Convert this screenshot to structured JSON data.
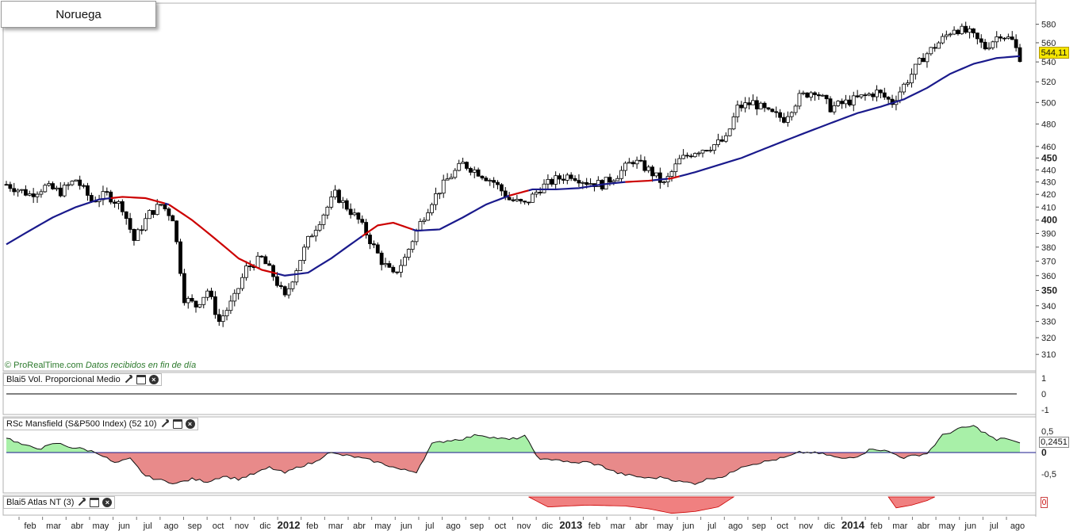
{
  "title": "Noruega",
  "credit": {
    "brand": "© ProRealTime.com",
    "note": "Datos recibidos en fin de día"
  },
  "last_price_label": "544,11",
  "panes": {
    "volume": {
      "label": "Blai5 Vol. Proporcional Medio",
      "ticks": [
        "1",
        "0",
        "-1"
      ]
    },
    "rsc": {
      "label": "RSc Mansfield (S&P500 Index) (52 10)",
      "ticks": [
        "0,5",
        "0",
        "-0,5"
      ],
      "last_value": "0,2451"
    },
    "atlas": {
      "label": "Blai5 Atlas NT (3)",
      "last_value": "0"
    }
  },
  "colors": {
    "moving_average_up": "#1a1a8c",
    "moving_average_down": "#cc0000",
    "rsc_positive_fill": "#a8f0a8",
    "rsc_negative_fill": "#e88a8a",
    "atlas_fill": "#f08080",
    "candle_up": "#ffffff",
    "candle_down": "#000000",
    "price_tag": "#f5e600"
  },
  "chart_data": [
    {
      "type": "candlestick",
      "title": "Noruega",
      "xlabel": "",
      "ylabel": "",
      "y_scale": "log",
      "ylim": [
        305,
        592
      ],
      "y_ticks": [
        {
          "value": 580,
          "label": "580"
        },
        {
          "value": 560,
          "label": "560"
        },
        {
          "value": 540,
          "label": "540"
        },
        {
          "value": 520,
          "label": "520"
        },
        {
          "value": 500,
          "label": "500"
        },
        {
          "value": 480,
          "label": "480"
        },
        {
          "value": 460,
          "label": "460"
        },
        {
          "value": 450,
          "label": "450",
          "bold": true
        },
        {
          "value": 440,
          "label": "440"
        },
        {
          "value": 430,
          "label": "430"
        },
        {
          "value": 420,
          "label": "420"
        },
        {
          "value": 410,
          "label": "410"
        },
        {
          "value": 400,
          "label": "400",
          "bold": true
        },
        {
          "value": 390,
          "label": "390"
        },
        {
          "value": 380,
          "label": "380"
        },
        {
          "value": 370,
          "label": "370"
        },
        {
          "value": 360,
          "label": "360"
        },
        {
          "value": 350,
          "label": "350",
          "bold": true
        },
        {
          "value": 340,
          "label": "340"
        },
        {
          "value": 330,
          "label": "330"
        },
        {
          "value": 320,
          "label": "320"
        },
        {
          "value": 310,
          "label": "310"
        }
      ],
      "x_labels": [
        {
          "label": "feb"
        },
        {
          "label": "mar"
        },
        {
          "label": "abr"
        },
        {
          "label": "may"
        },
        {
          "label": "jun"
        },
        {
          "label": "jul"
        },
        {
          "label": "ago"
        },
        {
          "label": "sep"
        },
        {
          "label": "oct"
        },
        {
          "label": "nov"
        },
        {
          "label": "dic"
        },
        {
          "label": "2012",
          "bold": true
        },
        {
          "label": "feb"
        },
        {
          "label": "mar"
        },
        {
          "label": "abr"
        },
        {
          "label": "may"
        },
        {
          "label": "jun"
        },
        {
          "label": "jul"
        },
        {
          "label": "ago"
        },
        {
          "label": "sep"
        },
        {
          "label": "oct"
        },
        {
          "label": "nov"
        },
        {
          "label": "dic"
        },
        {
          "label": "2013",
          "bold": true
        },
        {
          "label": "feb"
        },
        {
          "label": "mar"
        },
        {
          "label": "abr"
        },
        {
          "label": "may"
        },
        {
          "label": "jun"
        },
        {
          "label": "jul"
        },
        {
          "label": "ago"
        },
        {
          "label": "sep"
        },
        {
          "label": "oct"
        },
        {
          "label": "nov"
        },
        {
          "label": "dic"
        },
        {
          "label": "2014",
          "bold": true
        },
        {
          "label": "feb"
        },
        {
          "label": "mar"
        },
        {
          "label": "abr"
        },
        {
          "label": "may"
        },
        {
          "label": "jun"
        },
        {
          "label": "jul"
        },
        {
          "label": "ago"
        }
      ],
      "close_path": [
        [
          0,
          428
        ],
        [
          6,
          420
        ],
        [
          10,
          426
        ],
        [
          14,
          422
        ],
        [
          18,
          432
        ],
        [
          22,
          415
        ],
        [
          26,
          420
        ],
        [
          30,
          410
        ],
        [
          33,
          385
        ],
        [
          37,
          405
        ],
        [
          40,
          412
        ],
        [
          43,
          402
        ],
        [
          46,
          345
        ],
        [
          49,
          340
        ],
        [
          52,
          350
        ],
        [
          55,
          330
        ],
        [
          59,
          345
        ],
        [
          62,
          365
        ],
        [
          66,
          372
        ],
        [
          69,
          360
        ],
        [
          72,
          345
        ],
        [
          75,
          365
        ],
        [
          78,
          385
        ],
        [
          82,
          405
        ],
        [
          85,
          420
        ],
        [
          88,
          410
        ],
        [
          91,
          400
        ],
        [
          94,
          385
        ],
        [
          97,
          370
        ],
        [
          100,
          360
        ],
        [
          103,
          372
        ],
        [
          106,
          392
        ],
        [
          110,
          415
        ],
        [
          114,
          432
        ],
        [
          118,
          445
        ],
        [
          122,
          438
        ],
        [
          126,
          430
        ],
        [
          130,
          416
        ],
        [
          134,
          412
        ],
        [
          138,
          425
        ],
        [
          142,
          432
        ],
        [
          146,
          436
        ],
        [
          150,
          430
        ],
        [
          154,
          428
        ],
        [
          158,
          436
        ],
        [
          162,
          448
        ],
        [
          166,
          440
        ],
        [
          170,
          428
        ],
        [
          174,
          448
        ],
        [
          178,
          456
        ],
        [
          182,
          460
        ],
        [
          186,
          466
        ],
        [
          189,
          495
        ],
        [
          193,
          500
        ],
        [
          197,
          490
        ],
        [
          201,
          485
        ],
        [
          205,
          505
        ],
        [
          209,
          512
        ],
        [
          213,
          495
        ],
        [
          217,
          500
        ],
        [
          221,
          505
        ],
        [
          225,
          510
        ],
        [
          229,
          500
        ],
        [
          233,
          522
        ],
        [
          237,
          545
        ],
        [
          241,
          560
        ],
        [
          245,
          576
        ],
        [
          249,
          570
        ],
        [
          253,
          555
        ],
        [
          257,
          570
        ],
        [
          260,
          562
        ],
        [
          262,
          545
        ]
      ],
      "moving_average": [
        [
          0,
          382
        ],
        [
          6,
          392
        ],
        [
          12,
          402
        ],
        [
          18,
          410
        ],
        [
          24,
          416
        ],
        [
          30,
          418
        ],
        [
          36,
          417
        ],
        [
          42,
          412
        ],
        [
          48,
          400
        ],
        [
          54,
          386
        ],
        [
          60,
          372
        ],
        [
          66,
          364
        ],
        [
          72,
          360
        ],
        [
          78,
          362
        ],
        [
          84,
          372
        ],
        [
          90,
          384
        ],
        [
          96,
          396
        ],
        [
          100,
          398
        ],
        [
          106,
          392
        ],
        [
          112,
          393
        ],
        [
          118,
          402
        ],
        [
          124,
          412
        ],
        [
          130,
          419
        ],
        [
          136,
          424
        ],
        [
          142,
          424
        ],
        [
          148,
          425
        ],
        [
          154,
          428
        ],
        [
          160,
          430
        ],
        [
          166,
          431
        ],
        [
          172,
          433
        ],
        [
          178,
          438
        ],
        [
          184,
          444
        ],
        [
          190,
          450
        ],
        [
          196,
          458
        ],
        [
          202,
          466
        ],
        [
          208,
          474
        ],
        [
          214,
          482
        ],
        [
          220,
          490
        ],
        [
          226,
          496
        ],
        [
          232,
          503
        ],
        [
          238,
          514
        ],
        [
          244,
          528
        ],
        [
          250,
          538
        ],
        [
          256,
          544
        ],
        [
          262,
          546
        ]
      ],
      "ma_down_segments": [
        [
          27,
          40
        ],
        [
          42,
          69
        ],
        [
          92,
          104
        ],
        [
          130,
          134
        ],
        [
          160,
          166
        ],
        [
          171,
          173
        ]
      ]
    },
    {
      "type": "line",
      "title": "Blai5 Vol. Proporcional Medio",
      "ylim": [
        -1,
        1
      ],
      "values": [
        0
      ]
    },
    {
      "type": "area",
      "title": "RSc Mansfield (S&P500 Index) (52 10)",
      "ylim": [
        -0.9,
        0.8
      ],
      "baseline": 0,
      "series": [
        [
          0,
          0.35
        ],
        [
          5,
          0.15
        ],
        [
          9,
          0.1
        ],
        [
          13,
          0.22
        ],
        [
          17,
          0.12
        ],
        [
          20,
          0.08
        ],
        [
          24,
          -0.02
        ],
        [
          28,
          -0.25
        ],
        [
          32,
          -0.15
        ],
        [
          36,
          -0.55
        ],
        [
          40,
          -0.65
        ],
        [
          44,
          -0.72
        ],
        [
          48,
          -0.62
        ],
        [
          52,
          -0.68
        ],
        [
          56,
          -0.55
        ],
        [
          60,
          -0.62
        ],
        [
          64,
          -0.5
        ],
        [
          68,
          -0.35
        ],
        [
          72,
          -0.48
        ],
        [
          76,
          -0.32
        ],
        [
          80,
          -0.22
        ],
        [
          83,
          0.0
        ],
        [
          86,
          -0.05
        ],
        [
          90,
          -0.1
        ],
        [
          94,
          -0.18
        ],
        [
          98,
          -0.28
        ],
        [
          102,
          -0.4
        ],
        [
          106,
          -0.45
        ],
        [
          110,
          0.2
        ],
        [
          114,
          0.28
        ],
        [
          118,
          0.32
        ],
        [
          122,
          0.42
        ],
        [
          126,
          0.35
        ],
        [
          130,
          0.3
        ],
        [
          134,
          0.38
        ],
        [
          138,
          -0.18
        ],
        [
          142,
          -0.15
        ],
        [
          146,
          -0.25
        ],
        [
          150,
          -0.22
        ],
        [
          154,
          -0.32
        ],
        [
          158,
          -0.48
        ],
        [
          162,
          -0.55
        ],
        [
          166,
          -0.6
        ],
        [
          170,
          -0.58
        ],
        [
          174,
          -0.68
        ],
        [
          178,
          -0.72
        ],
        [
          182,
          -0.6
        ],
        [
          186,
          -0.55
        ],
        [
          190,
          -0.32
        ],
        [
          194,
          -0.25
        ],
        [
          198,
          -0.18
        ],
        [
          202,
          -0.1
        ],
        [
          205,
          0.0
        ],
        [
          208,
          0.0
        ],
        [
          212,
          -0.05
        ],
        [
          216,
          -0.15
        ],
        [
          220,
          -0.08
        ],
        [
          224,
          0.1
        ],
        [
          228,
          0.02
        ],
        [
          232,
          -0.12
        ],
        [
          236,
          -0.05
        ],
        [
          238,
          -0.02
        ],
        [
          242,
          0.4
        ],
        [
          246,
          0.55
        ],
        [
          250,
          0.62
        ],
        [
          254,
          0.4
        ],
        [
          256,
          0.28
        ],
        [
          258,
          0.35
        ],
        [
          262,
          0.2
        ]
      ]
    },
    {
      "type": "area",
      "title": "Blai5 Atlas NT (3)",
      "ylim": [
        -1,
        0
      ],
      "baseline": 0,
      "negative_segments": [
        {
          "from": 135,
          "to": 188,
          "path": [
            [
              135,
              0
            ],
            [
              140,
              -0.55
            ],
            [
              150,
              -0.45
            ],
            [
              160,
              -0.5
            ],
            [
              166,
              -0.65
            ],
            [
              172,
              -0.9
            ],
            [
              178,
              -0.8
            ],
            [
              184,
              -0.55
            ],
            [
              188,
              0
            ]
          ]
        },
        {
          "from": 228,
          "to": 240,
          "path": [
            [
              228,
              0
            ],
            [
              230,
              -0.6
            ],
            [
              234,
              -0.45
            ],
            [
              238,
              -0.2
            ],
            [
              240,
              0
            ]
          ]
        }
      ]
    }
  ]
}
